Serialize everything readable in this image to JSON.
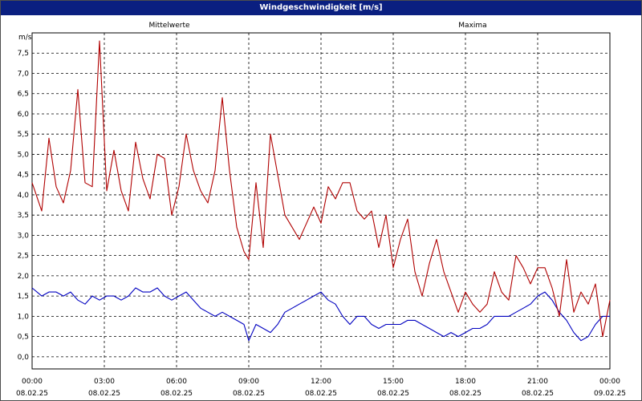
{
  "window": {
    "title": "Windgeschwindigkeit [m/s]",
    "title_bg": "#0a1f80"
  },
  "chart_data": {
    "type": "line",
    "title": "Windgeschwindigkeit [m/s]",
    "ylabel": "m/s",
    "xlabel": "",
    "ylim": [
      -0.3,
      8.0
    ],
    "y_ticks": [
      0.0,
      0.5,
      1.0,
      1.5,
      2.0,
      2.5,
      3.0,
      3.5,
      4.0,
      4.5,
      5.0,
      5.5,
      6.0,
      6.5,
      7.0,
      7.5
    ],
    "y_tick_labels": [
      "0,0",
      "0,5",
      "1,0",
      "1,5",
      "2,0",
      "2,5",
      "3,0",
      "3,5",
      "4,0",
      "4,5",
      "5,0",
      "5,5",
      "6,0",
      "6,5",
      "7,0",
      "7,5"
    ],
    "xlim": [
      0,
      24
    ],
    "x_ticks": [
      0,
      3,
      6,
      9,
      12,
      15,
      18,
      21,
      24
    ],
    "x_tick_time_labels": [
      "00:00",
      "03:00",
      "06:00",
      "09:00",
      "12:00",
      "15:00",
      "18:00",
      "21:00",
      "00:00"
    ],
    "x_tick_date_labels": [
      "08.02.25",
      "08.02.25",
      "08.02.25",
      "08.02.25",
      "08.02.25",
      "08.02.25",
      "08.02.25",
      "08.02.25",
      "09.02.25"
    ],
    "grid": true,
    "grid_style": "dashed",
    "legend_placement": "top",
    "series": [
      {
        "name": "Mittelwerte",
        "color": "#0000c0",
        "x": [
          0,
          0.4,
          0.7,
          1.0,
          1.3,
          1.6,
          1.9,
          2.2,
          2.5,
          2.8,
          3.1,
          3.4,
          3.7,
          4.0,
          4.3,
          4.6,
          4.9,
          5.2,
          5.5,
          5.8,
          6.1,
          6.4,
          6.7,
          7.0,
          7.3,
          7.6,
          7.9,
          8.2,
          8.5,
          8.8,
          9.0,
          9.3,
          9.6,
          9.9,
          10.2,
          10.5,
          10.8,
          11.1,
          11.4,
          11.7,
          12.0,
          12.3,
          12.6,
          12.9,
          13.2,
          13.5,
          13.8,
          14.1,
          14.4,
          14.7,
          15.0,
          15.3,
          15.6,
          15.9,
          16.2,
          16.5,
          16.8,
          17.1,
          17.4,
          17.7,
          18.0,
          18.3,
          18.6,
          18.9,
          19.2,
          19.5,
          19.8,
          20.1,
          20.4,
          20.7,
          21.0,
          21.3,
          21.6,
          21.9,
          22.2,
          22.5,
          22.8,
          23.1,
          23.4,
          23.7,
          24.0
        ],
        "values": [
          1.7,
          1.5,
          1.6,
          1.6,
          1.5,
          1.6,
          1.4,
          1.3,
          1.5,
          1.4,
          1.5,
          1.5,
          1.4,
          1.5,
          1.7,
          1.6,
          1.6,
          1.7,
          1.5,
          1.4,
          1.5,
          1.6,
          1.4,
          1.2,
          1.1,
          1.0,
          1.1,
          1.0,
          0.9,
          0.8,
          0.4,
          0.8,
          0.7,
          0.6,
          0.8,
          1.1,
          1.2,
          1.3,
          1.4,
          1.5,
          1.6,
          1.4,
          1.3,
          1.0,
          0.8,
          1.0,
          1.0,
          0.8,
          0.7,
          0.8,
          0.8,
          0.8,
          0.9,
          0.9,
          0.8,
          0.7,
          0.6,
          0.5,
          0.6,
          0.5,
          0.6,
          0.7,
          0.7,
          0.8,
          1.0,
          1.0,
          1.0,
          1.1,
          1.2,
          1.3,
          1.5,
          1.6,
          1.4,
          1.1,
          0.9,
          0.6,
          0.4,
          0.5,
          0.8,
          1.0,
          1.0
        ]
      },
      {
        "name": "Maxima",
        "color": "#b00000",
        "x": [
          0,
          0.4,
          0.7,
          1.0,
          1.3,
          1.6,
          1.9,
          2.2,
          2.5,
          2.8,
          3.1,
          3.4,
          3.7,
          4.0,
          4.3,
          4.6,
          4.9,
          5.2,
          5.5,
          5.8,
          6.1,
          6.4,
          6.7,
          7.0,
          7.3,
          7.6,
          7.9,
          8.2,
          8.5,
          8.8,
          9.0,
          9.3,
          9.6,
          9.9,
          10.2,
          10.5,
          10.8,
          11.1,
          11.4,
          11.7,
          12.0,
          12.3,
          12.6,
          12.9,
          13.2,
          13.5,
          13.8,
          14.1,
          14.4,
          14.7,
          15.0,
          15.3,
          15.6,
          15.9,
          16.2,
          16.5,
          16.8,
          17.1,
          17.4,
          17.7,
          18.0,
          18.3,
          18.6,
          18.9,
          19.2,
          19.5,
          19.8,
          20.1,
          20.4,
          20.7,
          21.0,
          21.3,
          21.6,
          21.9,
          22.2,
          22.5,
          22.8,
          23.1,
          23.4,
          23.7,
          24.0
        ],
        "values": [
          4.3,
          3.6,
          5.4,
          4.2,
          3.8,
          4.6,
          6.6,
          4.3,
          4.2,
          7.8,
          4.1,
          5.1,
          4.1,
          3.6,
          5.3,
          4.4,
          3.9,
          5.0,
          4.9,
          3.5,
          4.2,
          5.5,
          4.6,
          4.1,
          3.8,
          4.6,
          6.4,
          4.6,
          3.2,
          2.6,
          2.4,
          4.3,
          2.7,
          5.5,
          4.5,
          3.5,
          3.2,
          2.9,
          3.3,
          3.7,
          3.3,
          4.2,
          3.9,
          4.3,
          4.3,
          3.6,
          3.4,
          3.6,
          2.7,
          3.5,
          2.2,
          2.9,
          3.4,
          2.1,
          1.5,
          2.3,
          2.9,
          2.1,
          1.6,
          1.1,
          1.6,
          1.3,
          1.1,
          1.3,
          2.1,
          1.6,
          1.4,
          2.5,
          2.2,
          1.8,
          2.2,
          2.2,
          1.7,
          1.0,
          2.4,
          1.1,
          1.6,
          1.3,
          1.8,
          0.5,
          1.4
        ]
      }
    ]
  }
}
